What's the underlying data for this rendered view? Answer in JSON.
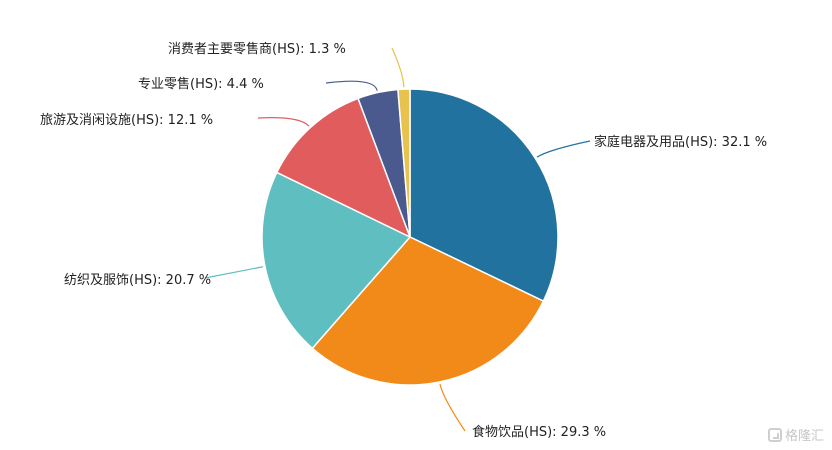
{
  "chart_data": {
    "type": "pie",
    "title": "",
    "unit": "%",
    "slices": [
      {
        "label": "家庭电器及用品(HS)",
        "value": 32.1,
        "display": "家庭电器及用品(HS): 32.1 %",
        "color": "#21729f"
      },
      {
        "label": "食物饮品(HS)",
        "value": 29.3,
        "display": "食物饮品(HS): 29.3 %",
        "color": "#f28a1a"
      },
      {
        "label": "纺织及服饰(HS)",
        "value": 20.7,
        "display": "纺织及服饰(HS): 20.7 %",
        "color": "#5fbec0"
      },
      {
        "label": "旅游及消闲设施(HS)",
        "value": 12.1,
        "display": "旅游及消闲设施(HS): 12.1 %",
        "color": "#e15d5d"
      },
      {
        "label": "专业零售(HS)",
        "value": 4.4,
        "display": "专业零售(HS): 4.4 %",
        "color": "#4a5a8e"
      },
      {
        "label": "消费者主要零售商(HS)",
        "value": 1.3,
        "display": "消费者主要零售商(HS): 1.3 %",
        "color": "#e7c24e"
      }
    ]
  },
  "watermark": {
    "text": "格隆汇",
    "icon": "brand-logo-icon"
  }
}
